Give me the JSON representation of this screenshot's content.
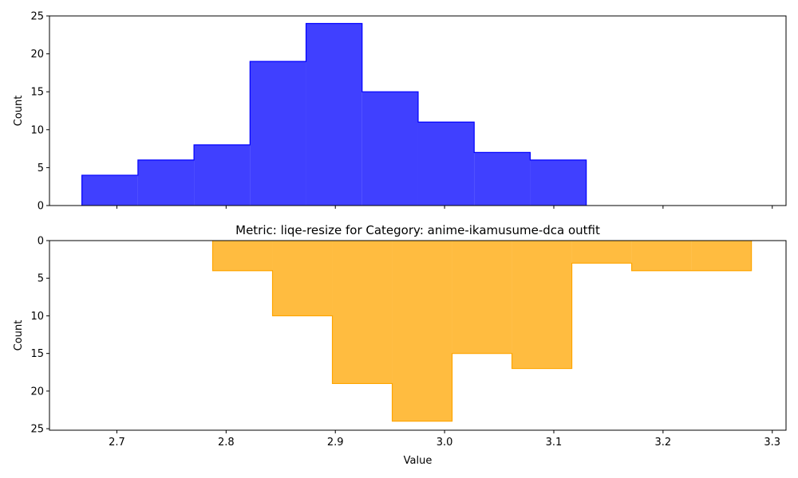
{
  "chart_data": [
    {
      "type": "histogram",
      "orientation": "normal",
      "color": "#0000ff",
      "fill_opacity": 0.75,
      "title": "",
      "xlabel": "",
      "ylabel": "Count",
      "bin_edges": [
        2.668,
        2.7193,
        2.7706,
        2.8219,
        2.8732,
        2.9245,
        2.9758,
        3.0271,
        3.0784,
        3.1297
      ],
      "counts": [
        4,
        6,
        8,
        19,
        24,
        15,
        11,
        7,
        6
      ],
      "xlim": [
        2.6383,
        3.3126
      ],
      "ylim": [
        0,
        25
      ],
      "xticks": [
        2.7,
        2.8,
        2.9,
        3.0,
        3.1,
        3.2,
        3.3
      ],
      "yticks": [
        0,
        5,
        10,
        15,
        20,
        25
      ],
      "ytick_labels": [
        "0",
        "5",
        "10",
        "15",
        "20",
        "25"
      ],
      "show_xtick_labels": false
    },
    {
      "type": "histogram",
      "orientation": "inverted",
      "color": "#ffa500",
      "fill_opacity": 0.75,
      "title": "Metric: liqe-resize for Category: anime-ikamusume-dca outfit",
      "xlabel": "Value",
      "ylabel": "Count",
      "bin_edges": [
        2.7877,
        2.8425,
        2.8973,
        2.9521,
        3.0069,
        3.0617,
        3.1165,
        3.1713,
        3.2261,
        3.2809
      ],
      "counts": [
        4,
        10,
        19,
        24,
        15,
        17,
        3,
        4,
        4
      ],
      "xlim": [
        2.6383,
        3.3126
      ],
      "ylim": [
        25.2,
        0
      ],
      "xticks": [
        2.7,
        2.8,
        2.9,
        3.0,
        3.1,
        3.2,
        3.3
      ],
      "xtick_labels": [
        "2.7",
        "2.8",
        "2.9",
        "3.0",
        "3.1",
        "3.2",
        "3.3"
      ],
      "yticks": [
        0,
        5,
        10,
        15,
        20,
        25
      ],
      "ytick_labels": [
        "0",
        "5",
        "10",
        "15",
        "20",
        "25"
      ],
      "show_xtick_labels": true
    }
  ]
}
